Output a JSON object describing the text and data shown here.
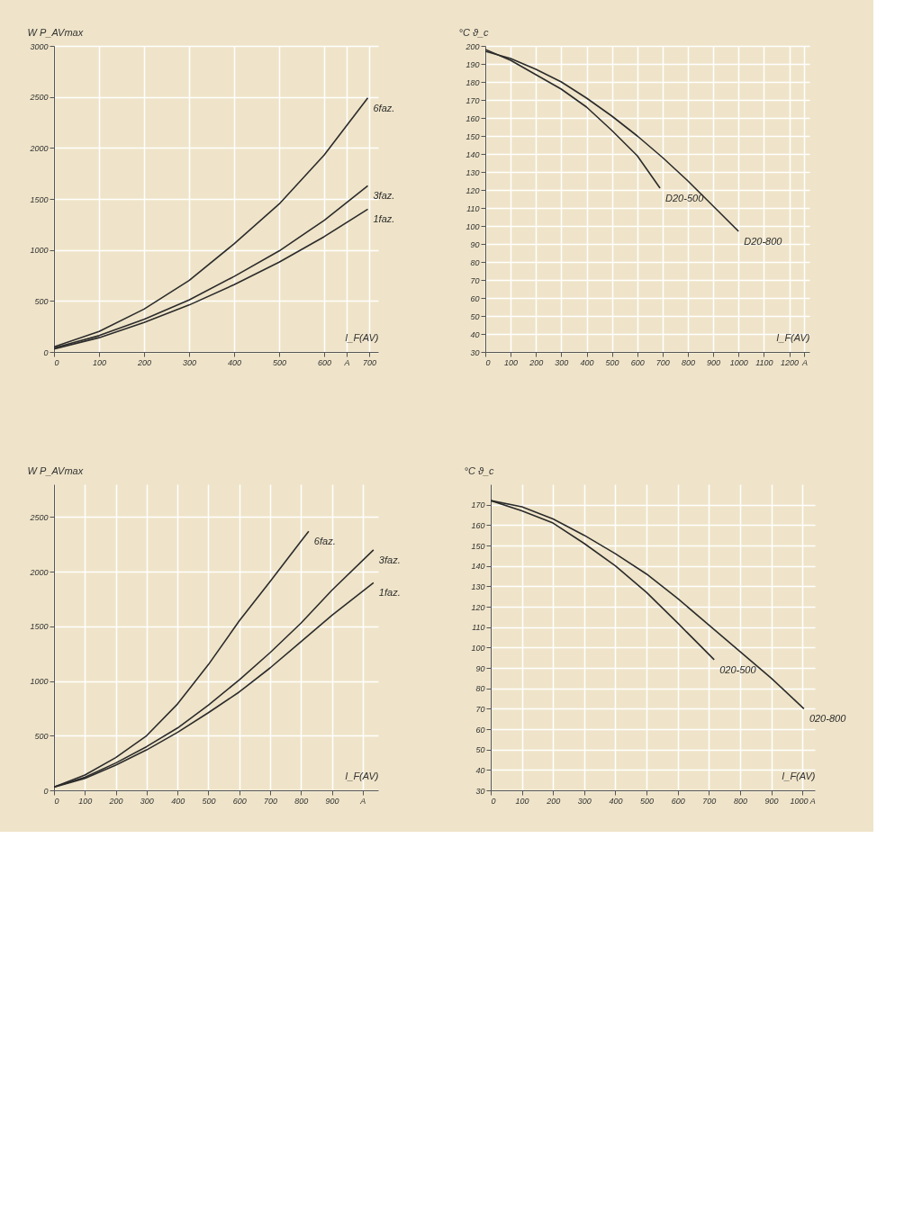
{
  "chart_data": [
    {
      "type": "line",
      "xlabel": "I_F(AV)",
      "ylabel": "W  P_AVmax",
      "grid": true,
      "xlim": [
        0,
        720
      ],
      "ylim": [
        0,
        3000
      ],
      "xticks": [
        0,
        100,
        200,
        300,
        400,
        500,
        600,
        {
          "value": 650,
          "label": "A"
        },
        700
      ],
      "yticks": [
        0,
        500,
        1000,
        1500,
        2000,
        2500,
        3000
      ],
      "series": [
        {
          "name": "6faz.",
          "color": "#2b2b2b",
          "x": [
            0,
            100,
            200,
            300,
            400,
            500,
            600,
            697
          ],
          "values": [
            50,
            200,
            420,
            700,
            1060,
            1450,
            1930,
            2490
          ]
        },
        {
          "name": "3faz.",
          "color": "#2b2b2b",
          "x": [
            0,
            100,
            200,
            300,
            400,
            500,
            600,
            697
          ],
          "values": [
            40,
            160,
            320,
            510,
            740,
            990,
            1290,
            1630
          ]
        },
        {
          "name": "1faz.",
          "color": "#2b2b2b",
          "x": [
            0,
            100,
            200,
            300,
            400,
            500,
            600,
            697
          ],
          "values": [
            30,
            140,
            290,
            460,
            660,
            880,
            1130,
            1400
          ]
        }
      ]
    },
    {
      "type": "line",
      "xlabel": "I_F(AV)",
      "ylabel": "°C  ϑ_c",
      "grid": true,
      "xlim": [
        0,
        1280
      ],
      "ylim": [
        30,
        200
      ],
      "xticks": [
        0,
        100,
        200,
        300,
        400,
        500,
        600,
        700,
        800,
        900,
        1000,
        1100,
        1200,
        {
          "value": 1260,
          "label": "A"
        }
      ],
      "yticks": [
        30,
        40,
        50,
        60,
        70,
        80,
        90,
        100,
        110,
        120,
        130,
        140,
        150,
        160,
        170,
        180,
        190,
        200
      ],
      "series": [
        {
          "name": "D20-500",
          "color": "#2b2b2b",
          "x": [
            0,
            100,
            200,
            300,
            400,
            500,
            600,
            690
          ],
          "values": [
            198,
            192,
            184,
            176,
            166,
            153,
            139,
            121
          ]
        },
        {
          "name": "D20-800",
          "color": "#2b2b2b",
          "x": [
            0,
            100,
            200,
            300,
            400,
            500,
            600,
            700,
            800,
            900,
            1000
          ],
          "values": [
            197,
            193,
            187,
            180,
            171,
            161,
            150,
            138,
            125,
            111,
            97
          ]
        }
      ]
    },
    {
      "type": "line",
      "xlabel": "I_F(AV)",
      "ylabel": "W  P_AVmax",
      "grid": true,
      "xlim": [
        0,
        1050
      ],
      "ylim": [
        0,
        2800
      ],
      "xticks": [
        0,
        100,
        200,
        300,
        400,
        500,
        600,
        700,
        800,
        900,
        {
          "value": 1000,
          "label": "A"
        }
      ],
      "yticks": [
        0,
        500,
        1000,
        1500,
        2000,
        2500
      ],
      "series": [
        {
          "name": "6faz.",
          "color": "#2b2b2b",
          "x": [
            0,
            100,
            200,
            300,
            400,
            500,
            600,
            700,
            800,
            825
          ],
          "values": [
            30,
            140,
            300,
            500,
            790,
            1150,
            1550,
            1910,
            2280,
            2370
          ]
        },
        {
          "name": "3faz.",
          "color": "#2b2b2b",
          "x": [
            0,
            100,
            200,
            300,
            400,
            500,
            600,
            700,
            800,
            900,
            1035
          ],
          "values": [
            30,
            120,
            250,
            400,
            570,
            780,
            1010,
            1260,
            1530,
            1830,
            2200
          ]
        },
        {
          "name": "1faz.",
          "color": "#2b2b2b",
          "x": [
            0,
            100,
            200,
            300,
            400,
            500,
            600,
            700,
            800,
            900,
            1035
          ],
          "values": [
            30,
            110,
            230,
            370,
            530,
            710,
            900,
            1120,
            1360,
            1600,
            1900
          ]
        }
      ]
    },
    {
      "type": "line",
      "xlabel": "I_F(AV)",
      "ylabel": "°C  ϑ_c",
      "grid": true,
      "xlim": [
        0,
        1040
      ],
      "ylim": [
        30,
        180
      ],
      "xticks": [
        0,
        100,
        200,
        300,
        400,
        500,
        600,
        700,
        800,
        900,
        {
          "value": 1000,
          "label": "1000 A"
        }
      ],
      "yticks": [
        30,
        40,
        50,
        60,
        70,
        80,
        90,
        100,
        110,
        120,
        130,
        140,
        150,
        160,
        170
      ],
      "series": [
        {
          "name": "020-500",
          "color": "#2b2b2b",
          "x": [
            0,
            100,
            200,
            300,
            400,
            500,
            600,
            717
          ],
          "values": [
            172,
            167,
            161,
            151,
            140,
            127,
            112,
            94
          ]
        },
        {
          "name": "020-800",
          "color": "#2b2b2b",
          "x": [
            0,
            100,
            200,
            300,
            400,
            500,
            600,
            700,
            800,
            900,
            1005
          ],
          "values": [
            172,
            169,
            163,
            155,
            146,
            136,
            124,
            111,
            98,
            85,
            70
          ]
        }
      ]
    }
  ]
}
